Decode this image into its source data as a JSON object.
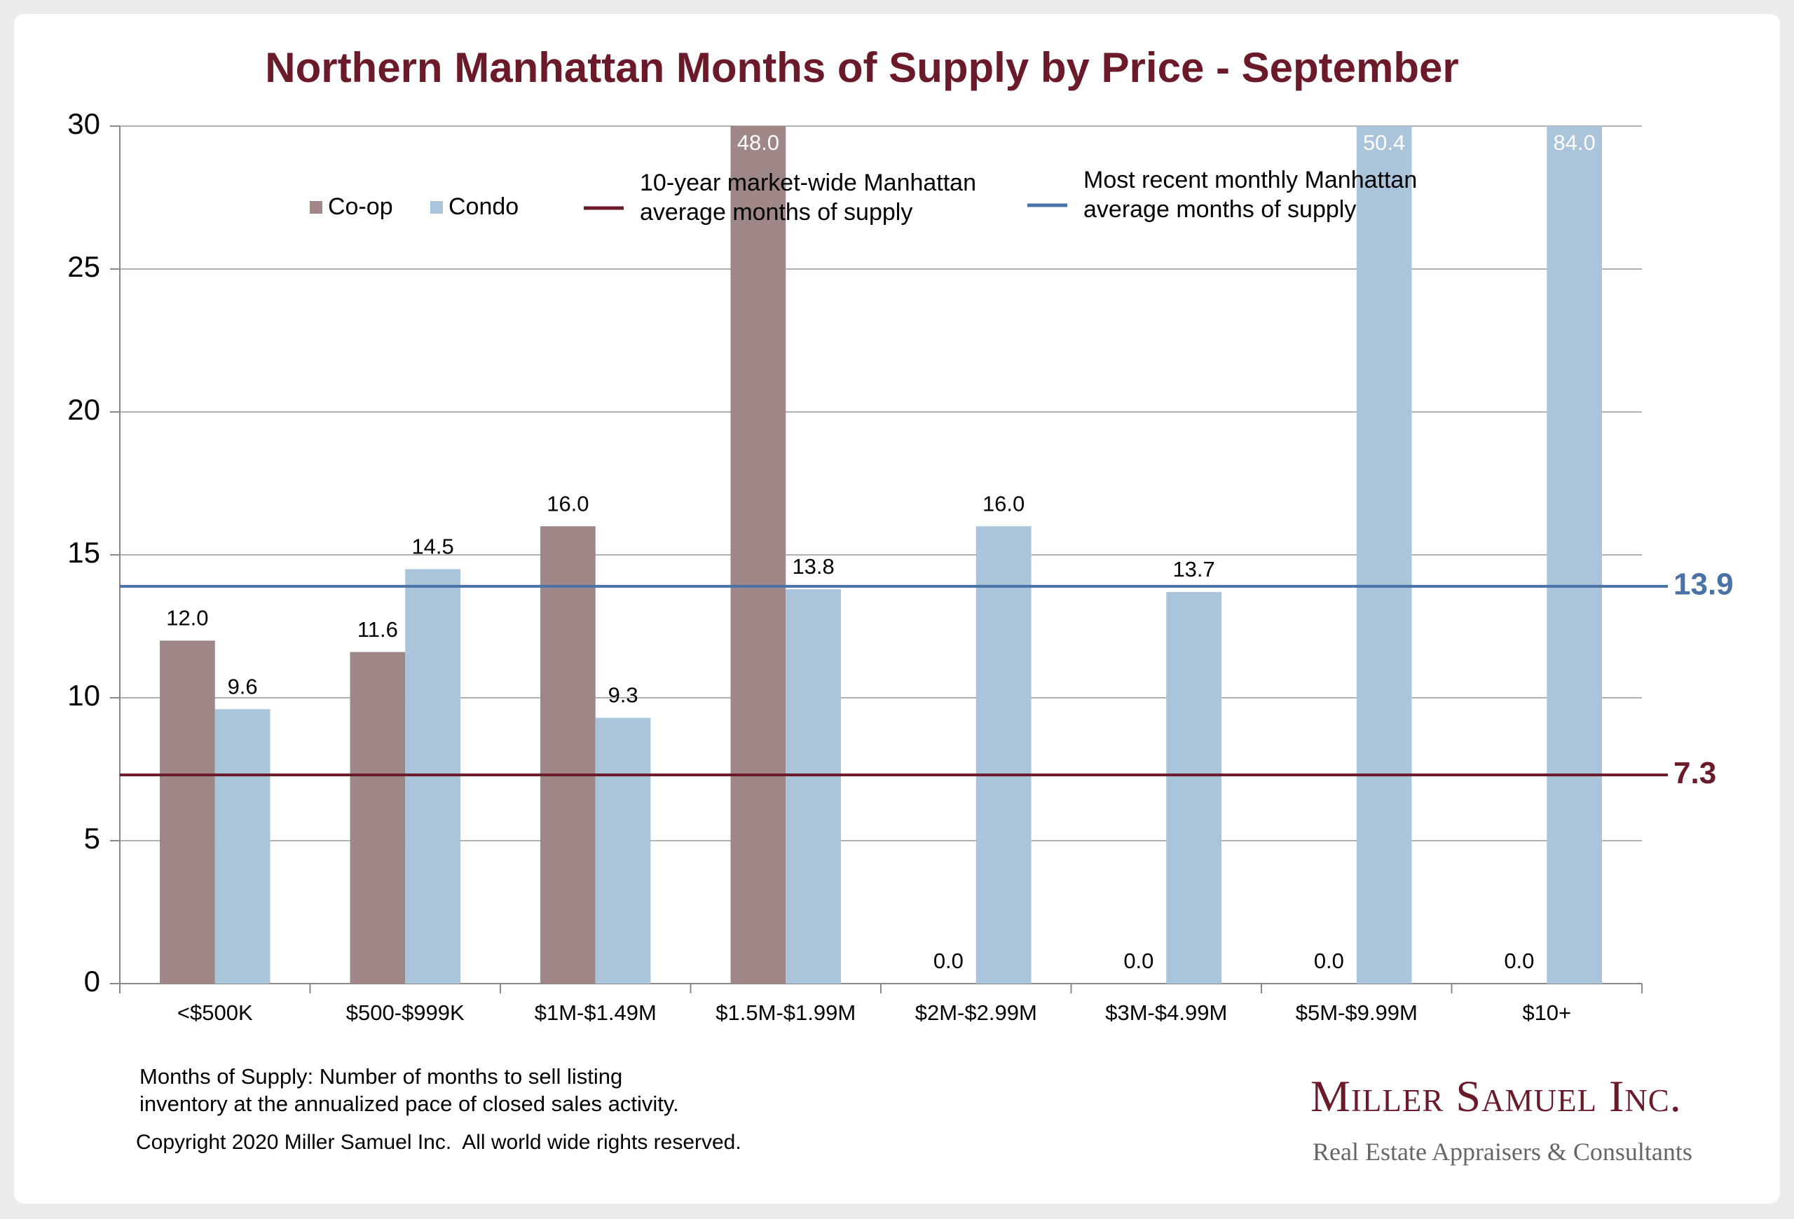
{
  "chart_data": {
    "type": "bar",
    "title": "Northern Manhattan Months of Supply by Price - September",
    "categories": [
      "<$500K",
      "$500-$999K",
      "$1M-$1.49M",
      "$1.5M-$1.99M",
      "$2M-$2.99M",
      "$3M-$4.99M",
      "$5M-$9.99M",
      "$10+"
    ],
    "series": [
      {
        "name": "Co-op",
        "color": "#9e8786",
        "values": [
          12.0,
          11.6,
          16.0,
          48.0,
          0.0,
          0.0,
          0.0,
          0.0
        ],
        "value_labels": [
          "12.0",
          "11.6",
          "16.0",
          "48.0",
          "0.0",
          "0.0",
          "0.0",
          "0.0"
        ]
      },
      {
        "name": "Condo",
        "color": "#a9c4db",
        "values": [
          9.6,
          14.5,
          9.3,
          13.8,
          16.0,
          13.7,
          50.4,
          84.0
        ],
        "value_labels": [
          "9.6",
          "14.5",
          "9.3",
          "13.8",
          "16.0",
          "13.7",
          "50.4",
          "84.0"
        ]
      }
    ],
    "reference_lines": [
      {
        "name": "10-year market-wide Manhattan average months of supply",
        "value": 7.3,
        "color": "#6b1a2a"
      },
      {
        "name": "Most recent monthly Manhattan average months of supply",
        "value": 13.9,
        "color": "#4a72a6"
      }
    ],
    "ylim": [
      0,
      30
    ],
    "yticks": [
      0,
      5,
      10,
      15,
      20,
      25,
      30
    ],
    "grid": true,
    "footnote": [
      "Months of Supply: Number of months to sell listing",
      "inventory at the annualized pace of closed sales activity."
    ],
    "copyright": "Copyright 2020 Miller Samuel Inc.  All world wide rights reserved.",
    "logo": {
      "name": "Miller Samuel Inc.",
      "tagline": "Real Estate Appraisers & Consultants"
    }
  }
}
